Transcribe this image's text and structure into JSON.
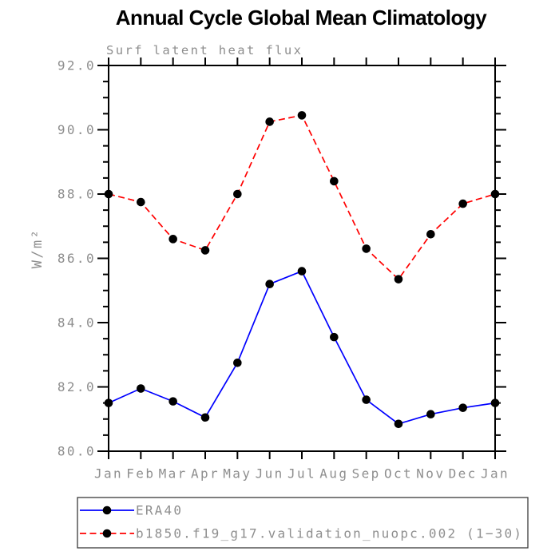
{
  "title": "Annual Cycle Global Mean Climatology",
  "subtitle": "Surf latent heat flux",
  "colors": {
    "background": "#ffffff",
    "axis": "#000000",
    "axis_text": "#8e8e8e",
    "title_text": "#000000",
    "marker": "#000000",
    "era40_line": "#0000ff",
    "model_line": "#ff0000",
    "legend_border": "#3a3a3a"
  },
  "chart_data": {
    "type": "line",
    "title": "Annual Cycle Global Mean Climatology",
    "subtitle": "Surf latent heat flux",
    "ylabel": "W/m²",
    "xlabel": "",
    "categories": [
      "Jan",
      "Feb",
      "Mar",
      "Apr",
      "May",
      "Jun",
      "Jul",
      "Aug",
      "Sep",
      "Oct",
      "Nov",
      "Dec",
      "Jan"
    ],
    "series": [
      {
        "name": "ERA40",
        "color": "#0000ff",
        "line_style": "solid",
        "marker": "filled-circle",
        "marker_color": "#000000",
        "values": [
          81.5,
          81.95,
          81.55,
          81.05,
          82.75,
          85.2,
          85.6,
          83.55,
          81.6,
          80.85,
          81.15,
          81.35,
          81.5
        ]
      },
      {
        "name": "b1850.f19_g17.validation_nuopc.002 (1−30)",
        "color": "#ff0000",
        "line_style": "dashed",
        "marker": "filled-circle",
        "marker_color": "#000000",
        "values": [
          88.0,
          87.75,
          86.6,
          86.25,
          88.0,
          90.25,
          90.45,
          88.4,
          86.3,
          85.35,
          86.75,
          87.7,
          88.0
        ]
      }
    ],
    "ylim": [
      80,
      92
    ],
    "ytick_major": 2,
    "ytick_minor": 0.5,
    "ytick_labels": [
      "80.0",
      "82.0",
      "84.0",
      "86.0",
      "88.0",
      "90.0",
      "92.0"
    ],
    "grid": false,
    "legend_position": "bottom",
    "axes_box": true
  }
}
